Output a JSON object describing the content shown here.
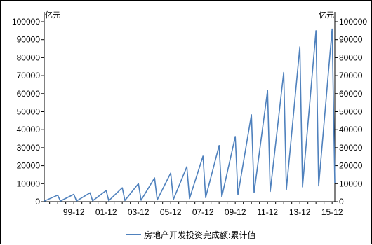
{
  "chart_data": {
    "type": "line",
    "unit_left": "亿元",
    "unit_right": "亿元",
    "ylim": [
      0,
      100000
    ],
    "yticks": [
      "0",
      "10000",
      "20000",
      "30000",
      "40000",
      "50000",
      "60000",
      "70000",
      "80000",
      "90000",
      "100000"
    ],
    "xticks": [
      "99-12",
      "01-12",
      "03-12",
      "05-12",
      "07-12",
      "09-12",
      "11-12",
      "13-12",
      "15-12"
    ],
    "grid": false,
    "legend_position": "bottom",
    "series": [
      {
        "name": "房地产开发投资完成额:累计值",
        "color": "#4f81bd",
        "x": [
          "1998-02",
          "1998-12",
          "1999-02",
          "1999-12",
          "2000-02",
          "2000-12",
          "2001-02",
          "2001-12",
          "2002-02",
          "2002-12",
          "2003-02",
          "2003-12",
          "2004-02",
          "2004-12",
          "2005-02",
          "2005-12",
          "2006-02",
          "2006-12",
          "2007-02",
          "2007-12",
          "2008-02",
          "2008-12",
          "2009-02",
          "2009-12",
          "2010-02",
          "2010-12",
          "2011-02",
          "2011-12",
          "2012-02",
          "2012-12",
          "2013-02",
          "2013-12",
          "2014-02",
          "2014-12",
          "2015-02",
          "2015-12",
          "2016-02"
        ],
        "y": [
          300,
          3600,
          350,
          4100,
          400,
          4900,
          450,
          6200,
          550,
          7700,
          650,
          10000,
          800,
          13200,
          1000,
          15900,
          1200,
          19400,
          1700,
          25300,
          2300,
          31200,
          2700,
          36200,
          3800,
          48300,
          5000,
          61800,
          5700,
          71800,
          6700,
          86000,
          8200,
          95000,
          8800,
          95900,
          10500
        ]
      }
    ]
  }
}
